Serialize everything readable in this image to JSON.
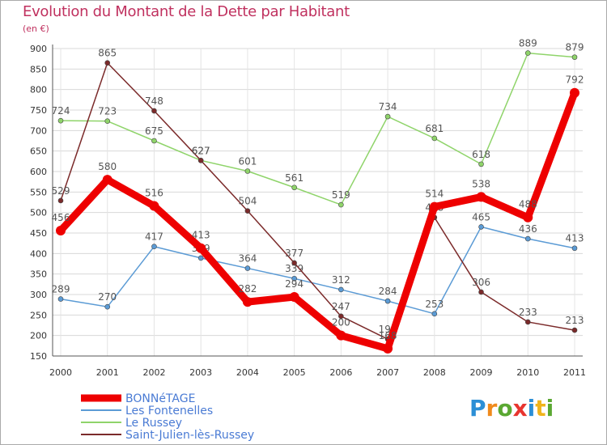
{
  "title": "Evolution du Montant de la Dette par Habitant",
  "unit_label": "(en €)",
  "logo": {
    "letters": [
      "P",
      "r",
      "o",
      "x",
      "i",
      "t",
      "i"
    ],
    "colors": [
      "#2c8fd6",
      "#f08a1c",
      "#5aa832",
      "#e8352f",
      "#2c8fd6",
      "#f0b41c",
      "#5aa832"
    ]
  },
  "chart_data": {
    "type": "line",
    "x": [
      "2000",
      "2001",
      "2002",
      "2003",
      "2004",
      "2005",
      "2006",
      "2007",
      "2008",
      "2009",
      "2010",
      "2011"
    ],
    "ylim": [
      150,
      900
    ],
    "yticks": [
      150,
      200,
      250,
      300,
      350,
      400,
      450,
      500,
      550,
      600,
      650,
      700,
      750,
      800,
      850,
      900
    ],
    "grid": true,
    "legend_position": "bottom-left",
    "series": [
      {
        "name": "BONNéTAGE",
        "color": "#ee0000",
        "emphasis": true,
        "values": [
          456,
          580,
          516,
          413,
          282,
          294,
          200,
          168,
          514,
          538,
          488,
          792
        ],
        "labels": [
          "456",
          "580",
          "516",
          "413",
          "282",
          "294",
          "200",
          "168",
          "514",
          "538",
          "488",
          "792"
        ]
      },
      {
        "name": "Les Fontenelles",
        "color": "#5b9bd5",
        "emphasis": false,
        "values": [
          289,
          270,
          417,
          389,
          364,
          339,
          312,
          284,
          253,
          465,
          436,
          413
        ],
        "labels": [
          "289",
          "270",
          "417",
          "389",
          "364",
          "339",
          "312",
          "284",
          "253",
          "465",
          "436",
          "413"
        ]
      },
      {
        "name": "Le Russey",
        "color": "#8fd46a",
        "emphasis": false,
        "values": [
          724,
          723,
          675,
          627,
          601,
          561,
          519,
          734,
          681,
          618,
          889,
          879
        ],
        "labels": [
          "724",
          "723",
          "675",
          "627",
          "601",
          "561",
          "519",
          "734",
          "681",
          "618",
          "889",
          "879"
        ]
      },
      {
        "name": "Saint-Julien-lès-Russey",
        "color": "#7b2a2a",
        "emphasis": false,
        "values": [
          529,
          865,
          748,
          627,
          504,
          377,
          247,
          191,
          488,
          306,
          233,
          213
        ],
        "labels": [
          "529",
          "865",
          "748",
          "627",
          "504",
          "377",
          "247",
          "191",
          "488",
          "306",
          "233",
          "213"
        ]
      }
    ]
  }
}
